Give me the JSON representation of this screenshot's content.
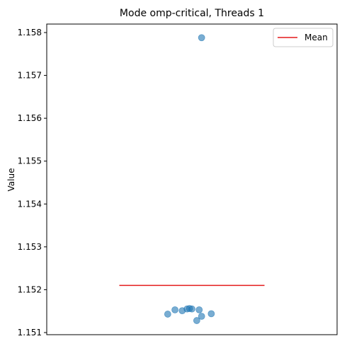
{
  "chart_data": {
    "type": "scatter",
    "title": "Mode omp-critical, Threads 1",
    "xlabel": "",
    "ylabel": "Value",
    "ylim": [
      1.15095,
      1.1581
    ],
    "yticks": [
      1.151,
      1.152,
      1.153,
      1.154,
      1.155,
      1.156,
      1.157,
      1.158
    ],
    "ytick_labels": [
      "1.151",
      "1.152",
      "1.153",
      "1.154",
      "1.155",
      "1.156",
      "1.157",
      "1.158"
    ],
    "xlim": [
      -0.3,
      0.3
    ],
    "points": [
      {
        "x": 0.02,
        "y": 1.15788
      },
      {
        "x": -0.05,
        "y": 1.15143
      },
      {
        "x": -0.035,
        "y": 1.15153
      },
      {
        "x": -0.02,
        "y": 1.15151
      },
      {
        "x": -0.01,
        "y": 1.15155
      },
      {
        "x": -0.005,
        "y": 1.15156
      },
      {
        "x": 0.0,
        "y": 1.15155
      },
      {
        "x": 0.015,
        "y": 1.15153
      },
      {
        "x": 0.02,
        "y": 1.15138
      },
      {
        "x": 0.01,
        "y": 1.15128
      },
      {
        "x": 0.04,
        "y": 1.15144
      }
    ],
    "mean": {
      "value": 1.1521,
      "x_start": -0.15,
      "x_end": 0.15,
      "color": "#e41a1c"
    },
    "legend": {
      "entries": [
        {
          "label": "Mean",
          "color": "#e41a1c"
        }
      ],
      "placement": "top-right"
    },
    "point_color": "#1f77b4",
    "grid": false
  }
}
